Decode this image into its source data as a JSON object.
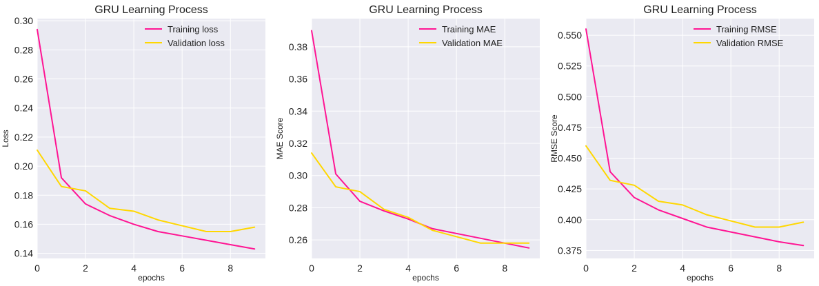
{
  "chart_data": [
    {
      "type": "line",
      "title": "GRU Learning Process",
      "xlabel": "epochs",
      "ylabel": "Loss",
      "xlim": [
        0,
        9.45
      ],
      "ylim": [
        0.1365,
        0.3015
      ],
      "xticks": [
        0,
        2,
        4,
        6,
        8
      ],
      "xtick_labels": [
        "0",
        "2",
        "4",
        "6",
        "8"
      ],
      "yticks": [
        0.14,
        0.16,
        0.18,
        0.2,
        0.22,
        0.24,
        0.26,
        0.28,
        0.3
      ],
      "ytick_labels": [
        "0.14",
        "0.16",
        "0.18",
        "0.20",
        "0.22",
        "0.24",
        "0.26",
        "0.28",
        "0.30"
      ],
      "grid": true,
      "legend": "top-right",
      "x": [
        0,
        1,
        2,
        3,
        4,
        5,
        6,
        7,
        8,
        9
      ],
      "series": [
        {
          "name": "Training loss",
          "color": "#ff1493",
          "values": [
            0.294,
            0.192,
            0.174,
            0.166,
            0.16,
            0.155,
            0.152,
            0.149,
            0.146,
            0.143
          ]
        },
        {
          "name": "Validation loss",
          "color": "#ffd700",
          "values": [
            0.211,
            0.186,
            0.183,
            0.171,
            0.169,
            0.163,
            0.159,
            0.155,
            0.155,
            0.158
          ]
        }
      ]
    },
    {
      "type": "line",
      "title": "GRU Learning Process",
      "xlabel": "epochs",
      "ylabel": "MAE Score",
      "xlim": [
        0,
        9.45
      ],
      "ylim": [
        0.2485,
        0.3975
      ],
      "xticks": [
        0,
        2,
        4,
        6,
        8
      ],
      "xtick_labels": [
        "0",
        "2",
        "4",
        "6",
        "8"
      ],
      "yticks": [
        0.26,
        0.28,
        0.3,
        0.32,
        0.34,
        0.36,
        0.38
      ],
      "ytick_labels": [
        "0.26",
        "0.28",
        "0.30",
        "0.32",
        "0.34",
        "0.36",
        "0.38"
      ],
      "grid": true,
      "legend": "top-right",
      "x": [
        0,
        1,
        2,
        3,
        4,
        5,
        6,
        7,
        8,
        9
      ],
      "series": [
        {
          "name": "Training MAE",
          "color": "#ff1493",
          "values": [
            0.39,
            0.301,
            0.284,
            0.278,
            0.273,
            0.267,
            0.264,
            0.261,
            0.258,
            0.255
          ]
        },
        {
          "name": "Validation MAE",
          "color": "#ffd700",
          "values": [
            0.314,
            0.293,
            0.29,
            0.279,
            0.274,
            0.266,
            0.262,
            0.258,
            0.258,
            0.258
          ]
        }
      ]
    },
    {
      "type": "line",
      "title": "GRU Learning Process",
      "xlabel": "epochs",
      "ylabel": "RMSE Score",
      "xlim": [
        0,
        9.45
      ],
      "ylim": [
        0.3685,
        0.5635
      ],
      "xticks": [
        0,
        2,
        4,
        6,
        8
      ],
      "xtick_labels": [
        "0",
        "2",
        "4",
        "6",
        "8"
      ],
      "yticks": [
        0.375,
        0.4,
        0.425,
        0.45,
        0.475,
        0.5,
        0.525,
        0.55
      ],
      "ytick_labels": [
        "0.375",
        "0.400",
        "0.425",
        "0.450",
        "0.475",
        "0.500",
        "0.525",
        "0.550"
      ],
      "grid": true,
      "legend": "top-right",
      "x": [
        0,
        1,
        2,
        3,
        4,
        5,
        6,
        7,
        8,
        9
      ],
      "series": [
        {
          "name": "Training RMSE",
          "color": "#ff1493",
          "values": [
            0.555,
            0.439,
            0.418,
            0.408,
            0.401,
            0.394,
            0.39,
            0.386,
            0.382,
            0.379
          ]
        },
        {
          "name": "Validation RMSE",
          "color": "#ffd700",
          "values": [
            0.46,
            0.432,
            0.428,
            0.415,
            0.412,
            0.404,
            0.399,
            0.394,
            0.394,
            0.398
          ]
        }
      ]
    }
  ]
}
